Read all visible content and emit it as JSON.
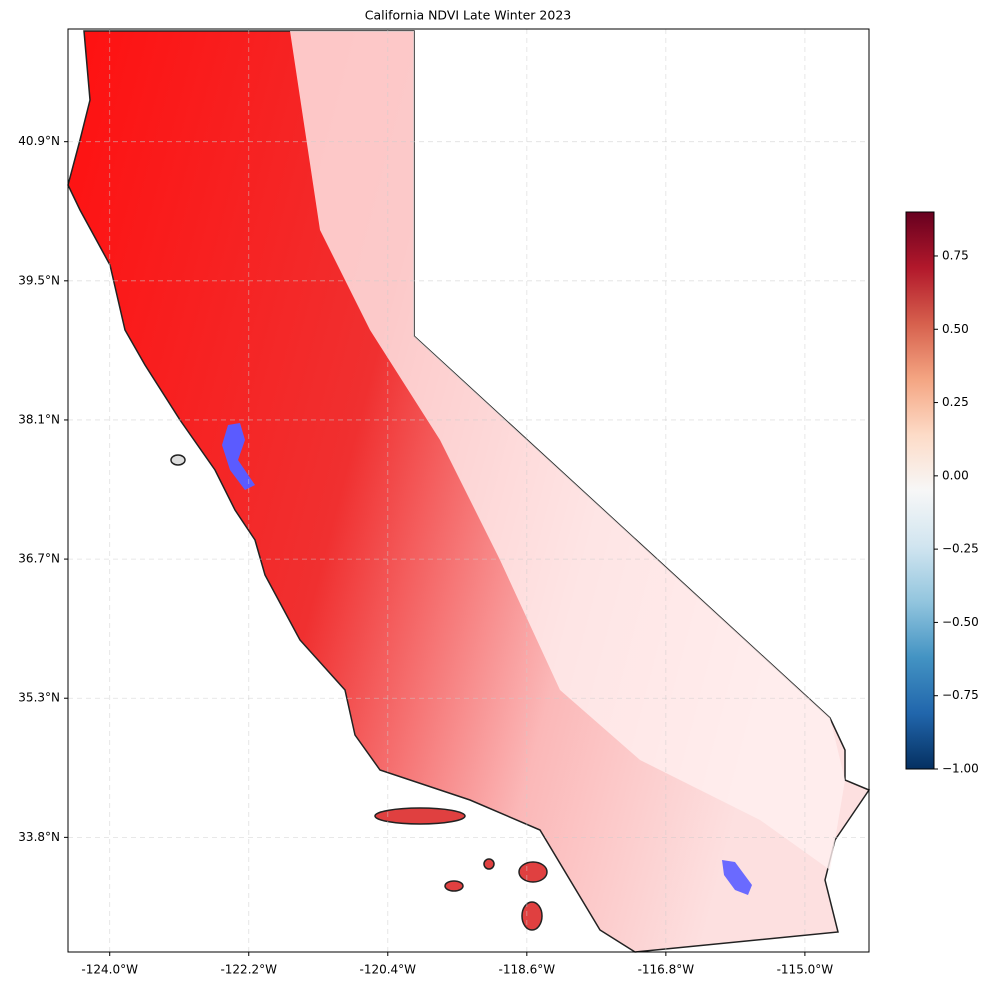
{
  "chart_data": {
    "type": "map",
    "title": "California NDVI Late Winter 2023",
    "xlim": [
      -124.54,
      -114.17
    ],
    "xticks": [
      {
        "value": -124.0,
        "label": "-124.0°W"
      },
      {
        "value": -122.2,
        "label": "-122.2°W"
      },
      {
        "value": -120.4,
        "label": "-120.4°W"
      },
      {
        "value": -118.6,
        "label": "-118.6°W"
      },
      {
        "value": -116.8,
        "label": "-116.8°W"
      },
      {
        "value": -115.0,
        "label": "-115.0°W"
      }
    ],
    "ylim": [
      32.67,
      42.09
    ],
    "yticks": [
      {
        "value": 33.84,
        "label": "33.8°N"
      },
      {
        "value": 35.26,
        "label": "35.3°N"
      },
      {
        "value": 36.68,
        "label": "36.7°N"
      },
      {
        "value": 38.1,
        "label": "38.1°N"
      },
      {
        "value": 39.52,
        "label": "39.5°N"
      },
      {
        "value": 40.94,
        "label": "40.9°N"
      }
    ],
    "grid": true,
    "colorbar": {
      "clim": [
        -1,
        0.9
      ],
      "ticks": [
        {
          "value": -1,
          "label": "−1.00"
        },
        {
          "value": -0.75,
          "label": "−0.75"
        },
        {
          "value": -0.5,
          "label": "−0.50"
        },
        {
          "value": -0.25,
          "label": "−0.25"
        },
        {
          "value": 0,
          "label": "0.00"
        },
        0.25,
        {
          "value": 0.5,
          "label": "0.50"
        },
        0.75
      ],
      "colors": [
        "#053061",
        "#2166ac",
        "#4393c3",
        "#92c5de",
        "#d1e5f0",
        "#f7f7f7",
        "#fddbc7",
        "#f4a582",
        "#d6604d",
        "#b2182b",
        "#67001f"
      ]
    }
  }
}
